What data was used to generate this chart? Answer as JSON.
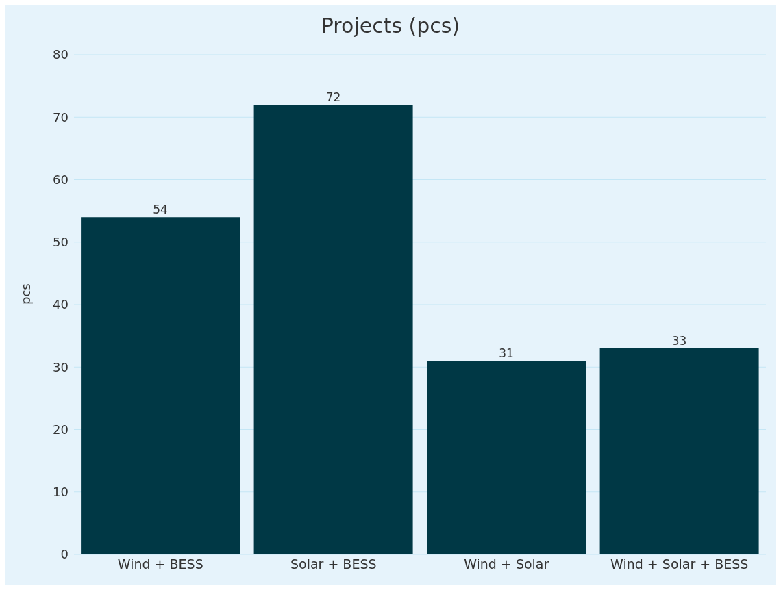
{
  "chart_data": {
    "type": "bar",
    "title": "Projects (pcs)",
    "ylabel": "pcs",
    "categories": [
      "Wind + BESS",
      "Solar + BESS",
      "Wind + Solar",
      "Wind + Solar + BESS"
    ],
    "values": [
      54,
      72,
      31,
      33
    ],
    "color": "#003845",
    "ylim": [
      0,
      80
    ],
    "yticks": [
      0,
      10,
      20,
      30,
      40,
      50,
      60,
      70,
      80
    ],
    "grid": "y",
    "data_labels": true
  }
}
